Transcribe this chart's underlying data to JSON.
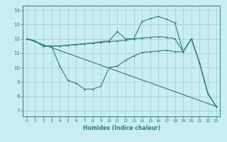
{
  "xlabel": "Humidex (Indice chaleur)",
  "bg_color": "#c8eef0",
  "grid_color": "#a0cccc",
  "line_color": "#2e7d7d",
  "xlim": [
    -0.5,
    23.5
  ],
  "ylim": [
    6.6,
    14.3
  ],
  "xticks": [
    0,
    1,
    2,
    3,
    4,
    5,
    6,
    7,
    8,
    9,
    10,
    11,
    12,
    13,
    14,
    15,
    16,
    17,
    18,
    19,
    20,
    21,
    22,
    23
  ],
  "yticks": [
    7,
    8,
    9,
    10,
    11,
    12,
    13,
    14
  ],
  "line1_x": [
    0,
    1,
    2,
    3,
    4,
    5,
    6,
    7,
    8,
    9,
    10,
    11,
    12,
    13,
    14,
    15,
    16,
    17,
    18,
    19,
    20,
    21,
    22,
    23
  ],
  "line1_y": [
    12.0,
    11.85,
    11.5,
    11.5,
    11.5,
    11.55,
    11.6,
    11.65,
    11.7,
    11.8,
    11.85,
    12.5,
    12.0,
    12.0,
    13.2,
    13.4,
    13.55,
    13.35,
    13.1,
    11.1,
    12.0,
    10.3,
    8.2,
    7.3
  ],
  "line2_x": [
    0,
    1,
    2,
    3,
    4,
    5,
    6,
    7,
    8,
    9,
    10,
    11,
    12,
    13,
    14,
    15,
    16,
    17,
    18,
    19,
    20,
    21,
    22,
    23
  ],
  "line2_y": [
    12.0,
    11.85,
    11.5,
    11.5,
    11.5,
    11.55,
    11.6,
    11.65,
    11.7,
    11.75,
    11.8,
    11.85,
    11.9,
    12.0,
    12.05,
    12.1,
    12.15,
    12.1,
    12.0,
    11.1,
    12.0,
    10.3,
    8.2,
    7.3
  ],
  "line3_x": [
    0,
    1,
    2,
    3,
    4,
    5,
    6,
    7,
    8,
    9,
    10,
    11,
    12,
    13,
    14,
    15,
    16,
    17,
    18,
    19,
    20,
    21,
    22,
    23
  ],
  "line3_y": [
    12.0,
    11.85,
    11.5,
    11.5,
    10.1,
    9.1,
    8.9,
    8.5,
    8.5,
    8.7,
    10.0,
    10.1,
    10.5,
    10.8,
    11.05,
    11.1,
    11.15,
    11.2,
    11.1,
    11.1,
    12.0,
    10.3,
    8.2,
    7.3
  ],
  "line4_x": [
    0,
    23
  ],
  "line4_y": [
    12.0,
    7.3
  ]
}
